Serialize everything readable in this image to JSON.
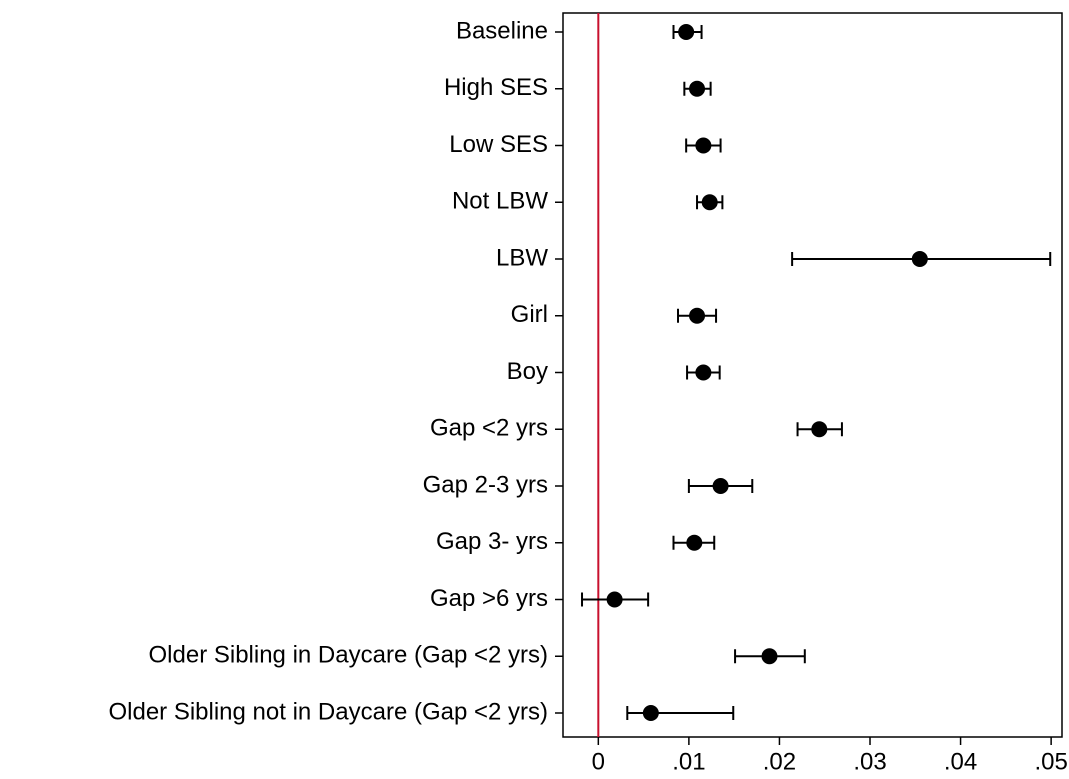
{
  "chart_data": {
    "type": "coefplot",
    "categories": [
      "Baseline",
      "High SES",
      "Low SES",
      "Not LBW",
      "LBW",
      "Girl",
      "Boy",
      "Gap <2 yrs",
      "Gap 2-3 yrs",
      "Gap 3- yrs",
      "Gap >6 yrs",
      "Older Sibling in Daycare (Gap <2 yrs)",
      "Older Sibling not in Daycare (Gap <2 yrs)"
    ],
    "values": [
      0.0097,
      0.0109,
      0.0116,
      0.0123,
      0.0355,
      0.0109,
      0.0116,
      0.0244,
      0.0135,
      0.0106,
      0.0018,
      0.0189,
      0.0058
    ],
    "ci_low": [
      0.0083,
      0.0095,
      0.0097,
      0.0109,
      0.0214,
      0.0088,
      0.0098,
      0.022,
      0.01,
      0.0083,
      -0.0018,
      0.0151,
      0.0032
    ],
    "ci_high": [
      0.0114,
      0.0124,
      0.0135,
      0.0137,
      0.0499,
      0.013,
      0.0134,
      0.0269,
      0.017,
      0.0128,
      0.0055,
      0.0228,
      0.0149
    ],
    "color": "#000000",
    "xlim": [
      -0.0039,
      0.0512
    ],
    "xticks": [
      0,
      {
        "value": 0.01,
        "label": ".01"
      },
      {
        "value": 0.02,
        "label": ".02"
      },
      {
        "value": 0.03,
        "label": ".03"
      },
      {
        "value": 0.04,
        "label": ".04"
      },
      {
        "value": 0.05,
        "label": ".05"
      }
    ],
    "xline": 0,
    "xline_color": "#c8102e"
  }
}
